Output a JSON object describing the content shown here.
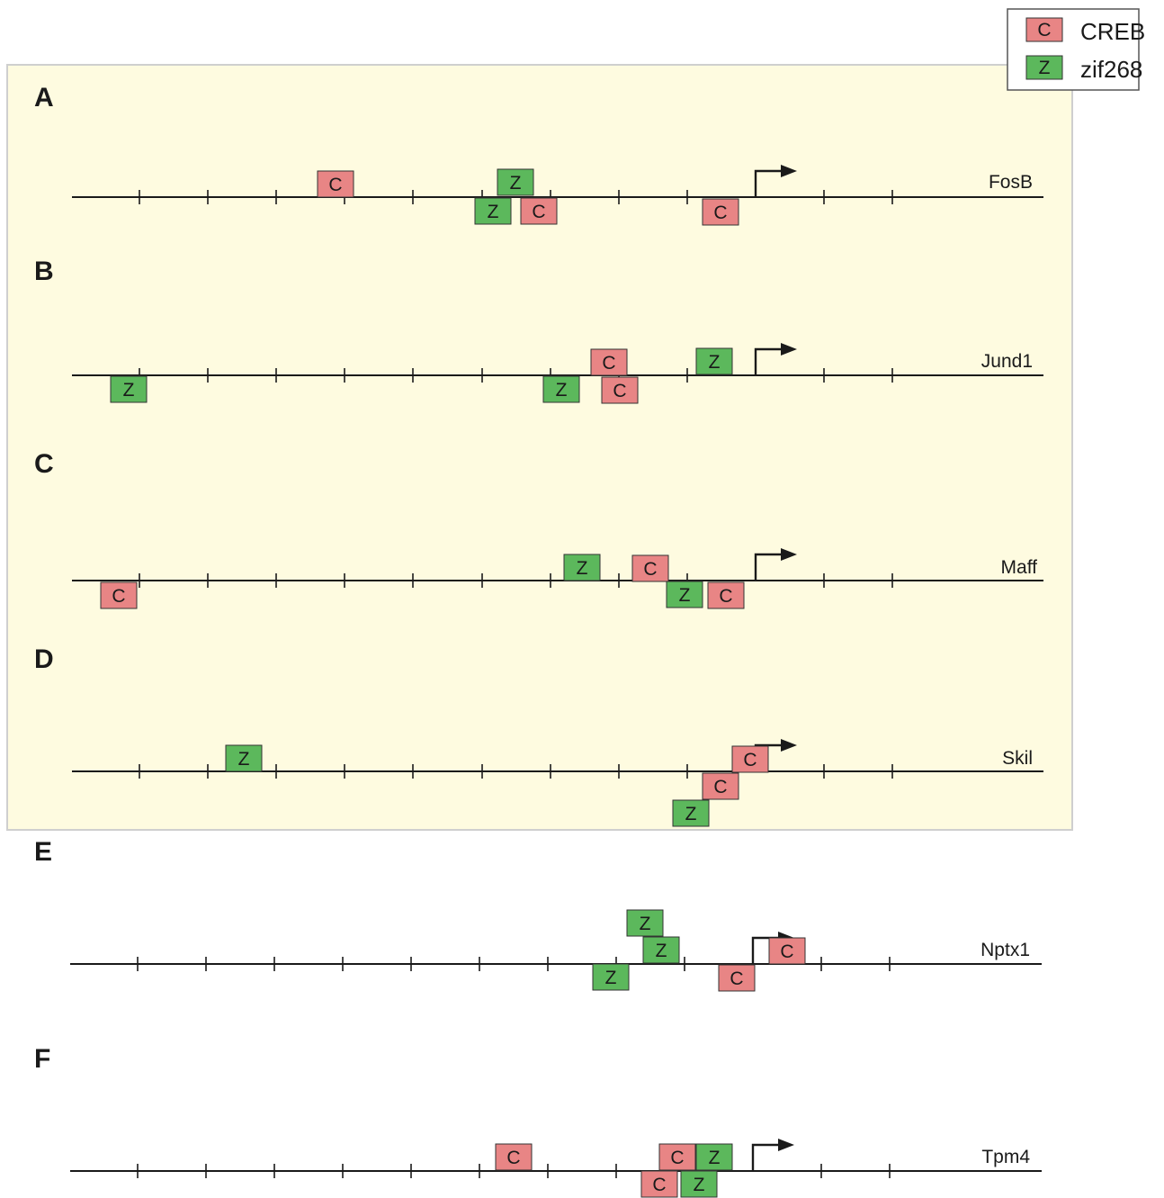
{
  "colors": {
    "creb": "#e88585",
    "zif268": "#5cb85c",
    "highlight": "#fefbe0",
    "line": "#1a1a1a"
  },
  "legend": {
    "items": [
      {
        "symbol": "C",
        "label": "CREB",
        "color": "#e88585"
      },
      {
        "symbol": "Z",
        "label": "zif268",
        "color": "#5cb85c"
      }
    ]
  },
  "panels": [
    {
      "letter": "A",
      "gene": "FosB",
      "highlighted": true
    },
    {
      "letter": "B",
      "gene": "Jund1",
      "highlighted": true
    },
    {
      "letter": "C",
      "gene": "Maff",
      "highlighted": true
    },
    {
      "letter": "D",
      "gene": "Skil",
      "highlighted": true
    },
    {
      "letter": "E",
      "gene": "Nptx1",
      "highlighted": false
    },
    {
      "letter": "F",
      "gene": "Tpm4",
      "highlighted": false
    }
  ]
}
